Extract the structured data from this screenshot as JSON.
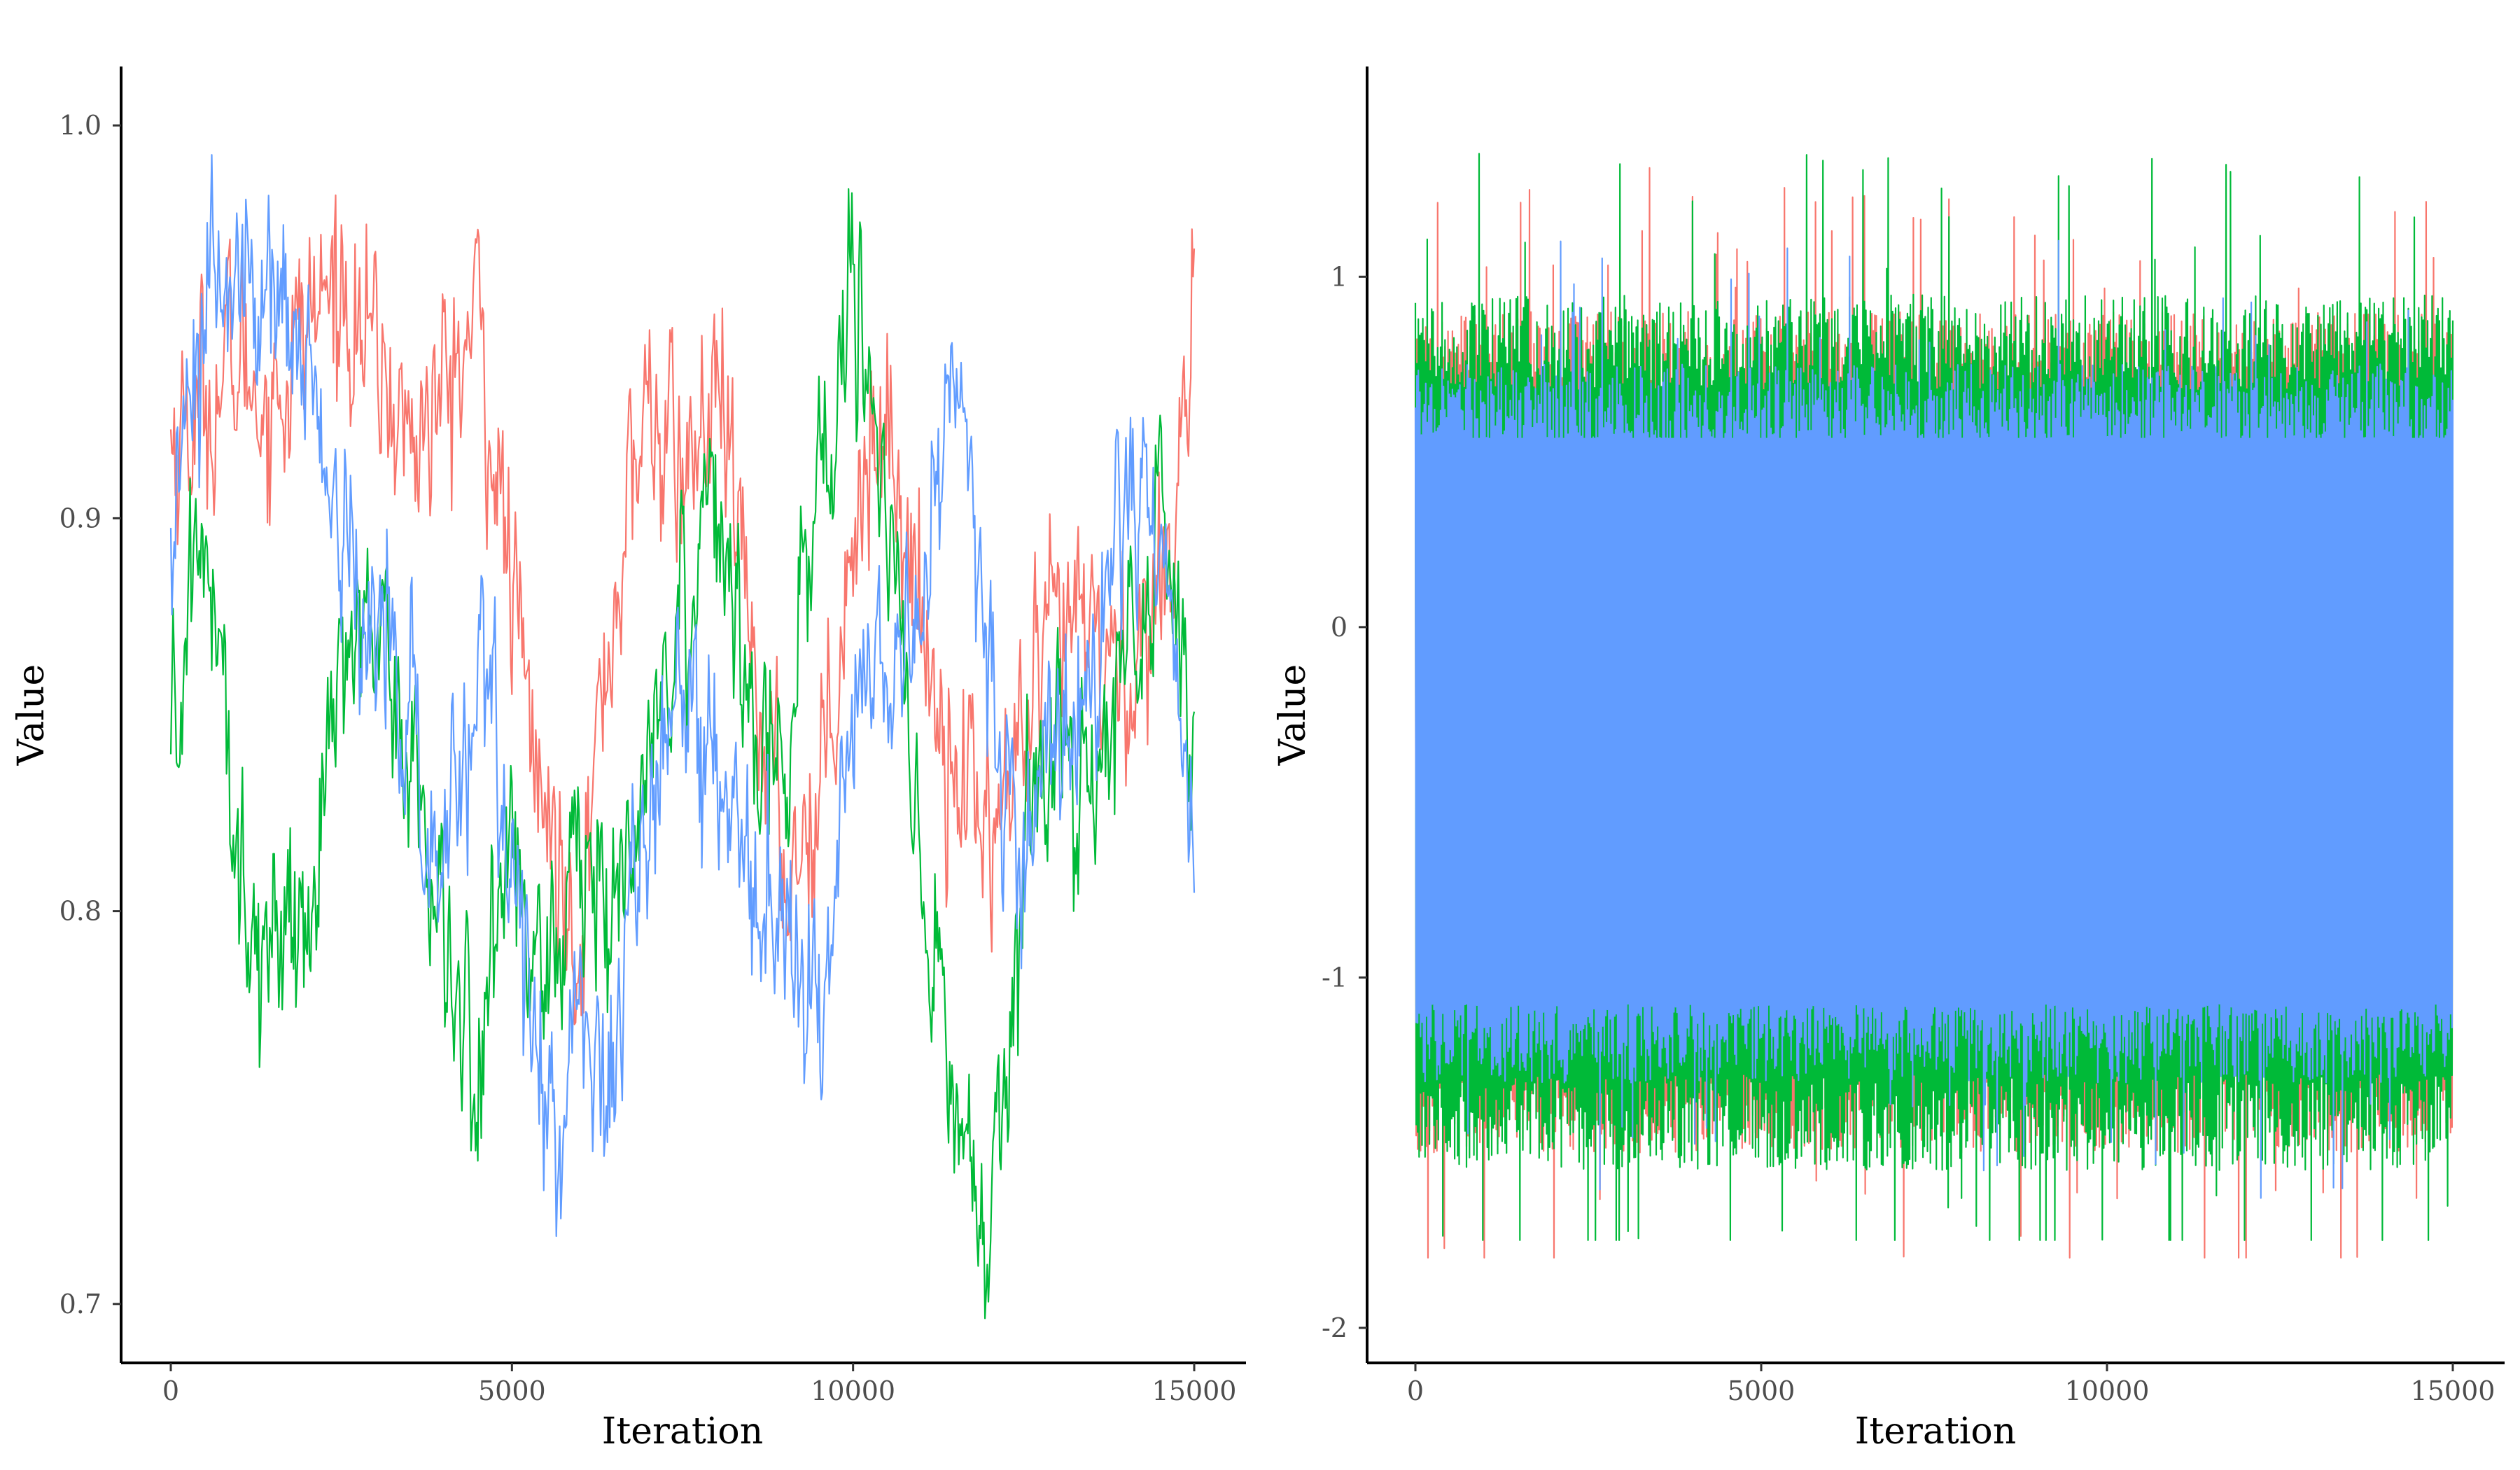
{
  "chart_data": [
    {
      "type": "line",
      "title": "",
      "xlabel": "Iteration",
      "ylabel": "Value",
      "xlim": [
        0,
        15000
      ],
      "ylim": [
        0.685,
        1.015
      ],
      "xticks": [
        0,
        5000,
        10000,
        15000
      ],
      "xtick_labels": [
        "0",
        "5000",
        "10000",
        "15000"
      ],
      "yticks": [
        0.7,
        0.8,
        0.9,
        1.0
      ],
      "ytick_labels": [
        "0.7",
        "0.8",
        "0.9",
        "1.0"
      ],
      "grid": false,
      "legend": "none",
      "series": [
        {
          "color": "#F8766D",
          "x": [
            0,
            500,
            1000,
            1500,
            2000,
            2500,
            3000,
            3500,
            4000,
            4500,
            5000,
            5500,
            6000,
            6500,
            7000,
            7500,
            8000,
            8500,
            9000,
            9500,
            10000,
            10500,
            11000,
            11500,
            12000,
            12500,
            13000,
            13500,
            14000,
            14500,
            15000
          ],
          "values": [
            0.92,
            0.93,
            0.94,
            0.93,
            0.95,
            0.96,
            0.94,
            0.92,
            0.93,
            0.95,
            0.88,
            0.82,
            0.8,
            0.88,
            0.93,
            0.91,
            0.93,
            0.87,
            0.81,
            0.83,
            0.9,
            0.93,
            0.87,
            0.84,
            0.82,
            0.84,
            0.87,
            0.87,
            0.86,
            0.88,
            0.95
          ]
        },
        {
          "color": "#00BA38",
          "x": [
            0,
            500,
            1000,
            1500,
            2000,
            2500,
            3000,
            3500,
            4000,
            4500,
            5000,
            5500,
            6000,
            6500,
            7000,
            7500,
            8000,
            8500,
            9000,
            9500,
            10000,
            10500,
            11000,
            11500,
            12000,
            12500,
            13000,
            13500,
            14000,
            14500,
            15000
          ],
          "values": [
            0.84,
            0.9,
            0.81,
            0.79,
            0.8,
            0.87,
            0.88,
            0.84,
            0.8,
            0.75,
            0.83,
            0.77,
            0.82,
            0.79,
            0.85,
            0.88,
            0.91,
            0.86,
            0.83,
            0.91,
            0.96,
            0.9,
            0.8,
            0.75,
            0.72,
            0.82,
            0.84,
            0.83,
            0.86,
            0.9,
            0.85
          ]
        },
        {
          "color": "#619CFF",
          "x": [
            0,
            500,
            1000,
            1500,
            2000,
            2500,
            3000,
            3500,
            4000,
            4500,
            5000,
            5500,
            6000,
            6500,
            7000,
            7500,
            8000,
            8500,
            9000,
            9500,
            10000,
            10500,
            11000,
            11500,
            12000,
            12500,
            13000,
            13500,
            14000,
            14500,
            15000
          ],
          "values": [
            0.9,
            0.96,
            0.95,
            0.97,
            0.94,
            0.9,
            0.87,
            0.85,
            0.8,
            0.87,
            0.81,
            0.75,
            0.77,
            0.76,
            0.83,
            0.86,
            0.84,
            0.8,
            0.79,
            0.77,
            0.85,
            0.86,
            0.88,
            0.94,
            0.85,
            0.82,
            0.84,
            0.86,
            0.91,
            0.89,
            0.82
          ]
        }
      ]
    },
    {
      "type": "line",
      "title": "",
      "xlabel": "Iteration",
      "ylabel": "Value",
      "xlim": [
        0,
        15000
      ],
      "ylim": [
        -2.1,
        1.6
      ],
      "xticks": [
        0,
        5000,
        10000,
        15000
      ],
      "xtick_labels": [
        "0",
        "5000",
        "10000",
        "15000"
      ],
      "yticks": [
        -2,
        -1,
        0,
        1
      ],
      "ytick_labels": [
        "-2",
        "-1",
        "0",
        "1"
      ],
      "grid": false,
      "legend": "none",
      "series": [
        {
          "color": "#F8766D",
          "x": [
            0,
            15000
          ],
          "min": [
            -1.5,
            -1.5
          ],
          "max": [
            0.9,
            0.9
          ],
          "extremes": [
            -1.8,
            1.35
          ]
        },
        {
          "color": "#00BA38",
          "x": [
            0,
            15000
          ],
          "min": [
            -1.55,
            -1.55
          ],
          "max": [
            0.95,
            0.95
          ],
          "extremes": [
            -1.75,
            1.45
          ]
        },
        {
          "color": "#619CFF",
          "x": [
            0,
            15000
          ],
          "min": [
            -1.3,
            -1.3
          ],
          "max": [
            0.75,
            0.75
          ],
          "extremes": [
            -1.7,
            1.35
          ]
        }
      ]
    }
  ]
}
